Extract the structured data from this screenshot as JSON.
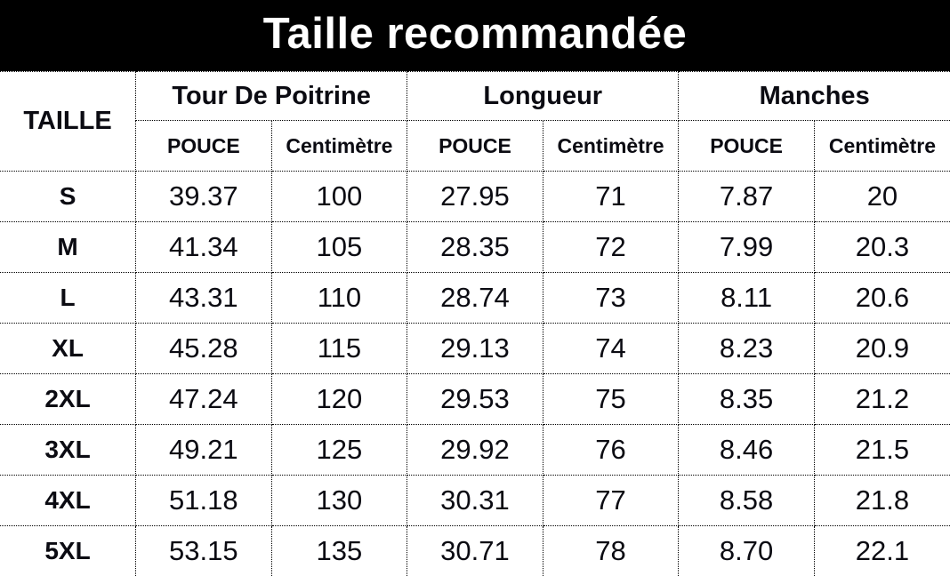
{
  "title": "Taille recommandée",
  "colors": {
    "banner_background": "#000000",
    "banner_text": "#ffffff",
    "table_text": "#0b0b12",
    "border": "#000000",
    "background": "#ffffff"
  },
  "table": {
    "corner_label": "TAILLE",
    "groups": [
      {
        "label": "Tour De Poitrine"
      },
      {
        "label": "Longueur"
      },
      {
        "label": "Manches"
      }
    ],
    "subheaders": {
      "pouce": "POUCE",
      "cm": "Centimètre"
    },
    "rows": [
      {
        "size": "S",
        "values": [
          "39.37",
          "100",
          "27.95",
          "71",
          "7.87",
          "20"
        ]
      },
      {
        "size": "M",
        "values": [
          "41.34",
          "105",
          "28.35",
          "72",
          "7.99",
          "20.3"
        ]
      },
      {
        "size": "L",
        "values": [
          "43.31",
          "110",
          "28.74",
          "73",
          "8.11",
          "20.6"
        ]
      },
      {
        "size": "XL",
        "values": [
          "45.28",
          "115",
          "29.13",
          "74",
          "8.23",
          "20.9"
        ]
      },
      {
        "size": "2XL",
        "values": [
          "47.24",
          "120",
          "29.53",
          "75",
          "8.35",
          "21.2"
        ]
      },
      {
        "size": "3XL",
        "values": [
          "49.21",
          "125",
          "29.92",
          "76",
          "8.46",
          "21.5"
        ]
      },
      {
        "size": "4XL",
        "values": [
          "51.18",
          "130",
          "30.31",
          "77",
          "8.58",
          "21.8"
        ]
      },
      {
        "size": "5XL",
        "values": [
          "53.15",
          "135",
          "30.71",
          "78",
          "8.70",
          "22.1"
        ]
      }
    ]
  },
  "chart_data": {
    "type": "table",
    "title": "Taille recommandée",
    "columns": [
      "TAILLE",
      "Tour De Poitrine POUCE",
      "Tour De Poitrine Centimètre",
      "Longueur POUCE",
      "Longueur Centimètre",
      "Manches POUCE",
      "Manches Centimètre"
    ],
    "rows": [
      [
        "S",
        39.37,
        100,
        27.95,
        71,
        7.87,
        20.0
      ],
      [
        "M",
        41.34,
        105,
        28.35,
        72,
        7.99,
        20.3
      ],
      [
        "L",
        43.31,
        110,
        28.74,
        73,
        8.11,
        20.6
      ],
      [
        "XL",
        45.28,
        115,
        29.13,
        74,
        8.23,
        20.9
      ],
      [
        "2XL",
        47.24,
        120,
        29.53,
        75,
        8.35,
        21.2
      ],
      [
        "3XL",
        49.21,
        125,
        29.92,
        76,
        8.46,
        21.5
      ],
      [
        "4XL",
        51.18,
        130,
        30.31,
        77,
        8.58,
        21.8
      ],
      [
        "5XL",
        53.15,
        135,
        30.71,
        78,
        8.7,
        22.1
      ]
    ]
  }
}
